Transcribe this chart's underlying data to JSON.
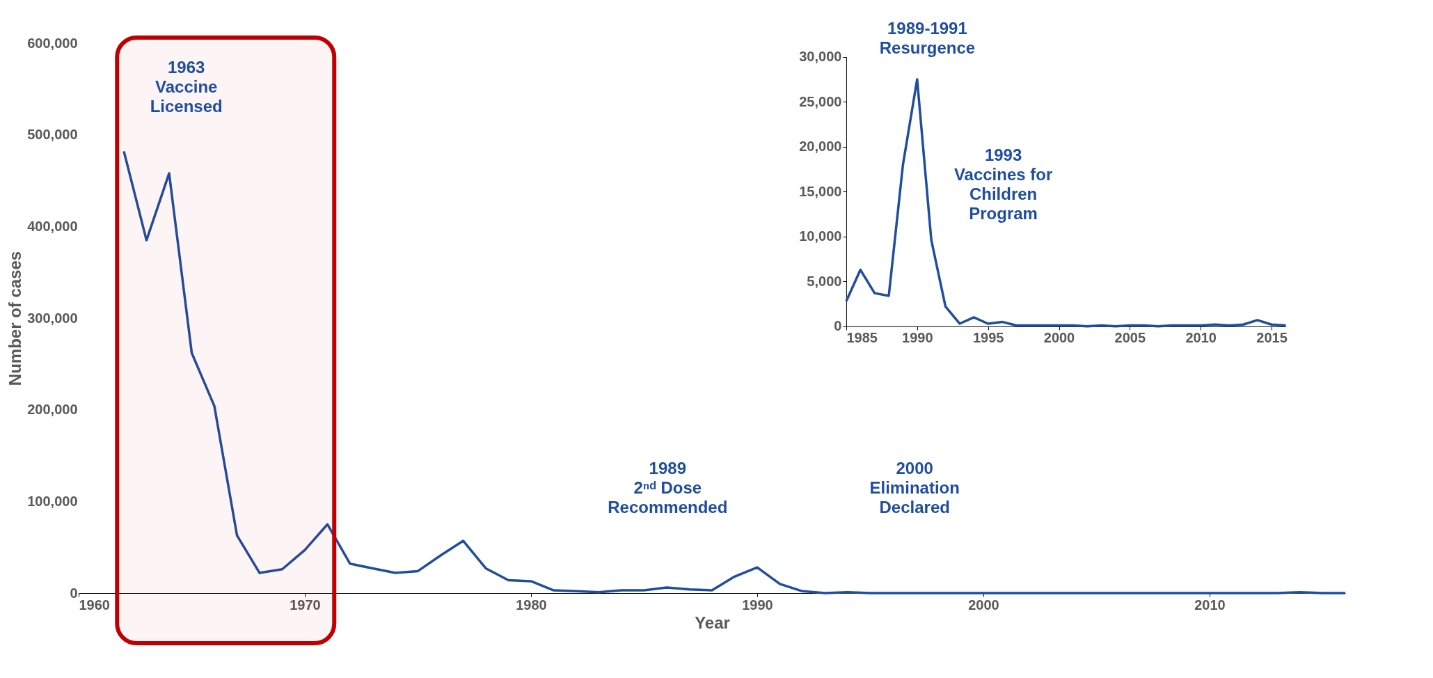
{
  "chart_data": [
    {
      "type": "line",
      "xlabel": "Year",
      "ylabel": "Number of cases",
      "xlim": [
        1960,
        2016
      ],
      "ylim": [
        0,
        600000
      ],
      "xticks": [
        1960,
        1970,
        1980,
        1990,
        2000,
        2010
      ],
      "yticks": [
        0,
        {
          "value": 100000,
          "label": "100,000"
        },
        {
          "value": 200000,
          "label": "200,000"
        },
        {
          "value": 300000,
          "label": "300,000"
        },
        {
          "value": 400000,
          "label": "400,000"
        },
        {
          "value": 500000,
          "label": "500,000"
        },
        {
          "value": 600000,
          "label": "600,000"
        }
      ],
      "x": [
        1962,
        1963,
        1964,
        1965,
        1966,
        1967,
        1968,
        1969,
        1970,
        1971,
        1972,
        1973,
        1974,
        1975,
        1976,
        1977,
        1978,
        1979,
        1980,
        1981,
        1982,
        1983,
        1984,
        1985,
        1986,
        1987,
        1988,
        1989,
        1990,
        1991,
        1992,
        1993,
        1994,
        1995,
        1996,
        1997,
        1998,
        1999,
        2000,
        2001,
        2002,
        2003,
        2004,
        2005,
        2006,
        2007,
        2008,
        2009,
        2010,
        2011,
        2012,
        2013,
        2014,
        2015,
        2016
      ],
      "series": [
        {
          "color": "#1f4e9e",
          "values": [
            482000,
            385000,
            458000,
            262000,
            204000,
            63000,
            22000,
            26000,
            47000,
            75000,
            32000,
            27000,
            22000,
            24000,
            41000,
            57000,
            27000,
            14000,
            13000,
            3000,
            2000,
            1000,
            3000,
            3000,
            6000,
            4000,
            3000,
            18000,
            28000,
            10000,
            2000,
            0,
            1000,
            0,
            0,
            0,
            0,
            0,
            0,
            0,
            0,
            0,
            0,
            0,
            0,
            0,
            0,
            0,
            0,
            0,
            0,
            0,
            1000,
            0,
            0
          ]
        }
      ],
      "bands": [
        {
          "axis": "x",
          "from": 1961.7,
          "to": 1971.3,
          "color": "#c00000"
        }
      ],
      "annotations": [
        "1963\nVaccine\nLicensed",
        "1989\n2ⁿᵈ Dose\nRecommended",
        "2000\nElimination\nDeclared"
      ]
    },
    {
      "type": "line",
      "xlim": [
        1985,
        2016
      ],
      "ylim": [
        0,
        30000
      ],
      "xticks": [
        1985,
        1990,
        1995,
        2000,
        2005,
        2010,
        2015
      ],
      "yticks": [
        0,
        {
          "value": 5000,
          "label": "5,000"
        },
        {
          "value": 10000,
          "label": "10,000"
        },
        {
          "value": 15000,
          "label": "15,000"
        },
        {
          "value": 20000,
          "label": "20,000"
        },
        {
          "value": 25000,
          "label": "25,000"
        },
        {
          "value": 30000,
          "label": "30,000"
        }
      ],
      "x": [
        1985,
        1986,
        1987,
        1988,
        1989,
        1990,
        1991,
        1992,
        1993,
        1994,
        1995,
        1996,
        1997,
        1998,
        1999,
        2000,
        2001,
        2002,
        2003,
        2004,
        2005,
        2006,
        2007,
        2008,
        2009,
        2010,
        2011,
        2012,
        2013,
        2014,
        2015,
        2016
      ],
      "series": [
        {
          "color": "#1f4e9e",
          "values": [
            2800,
            6300,
            3700,
            3400,
            18000,
            27500,
            9600,
            2200,
            300,
            1000,
            300,
            500,
            100,
            100,
            100,
            100,
            100,
            0,
            100,
            0,
            100,
            100,
            0,
            100,
            100,
            100,
            200,
            100,
            200,
            700,
            200,
            100
          ]
        }
      ],
      "annotations": [
        "1989-1991\nResurgence",
        "1993\nVaccines for\nChildren\nProgram"
      ]
    }
  ]
}
